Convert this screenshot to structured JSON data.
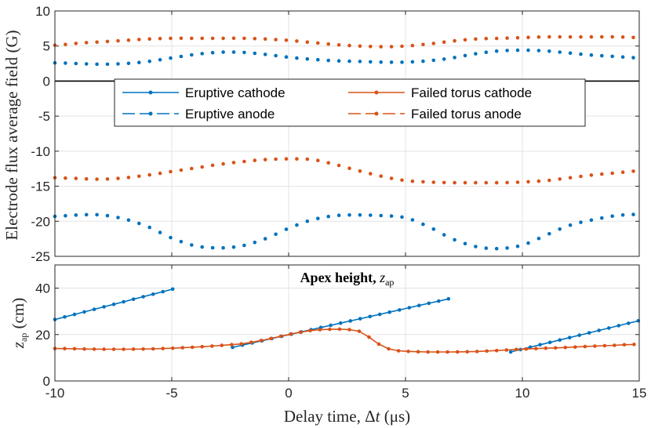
{
  "chart_data": [
    {
      "type": "line",
      "name": "flux",
      "ylabel": "Electrode flux average field (G)",
      "xlim": [
        -10,
        15
      ],
      "ylim": [
        -25,
        10
      ],
      "xticks": [
        -10,
        -5,
        0,
        5,
        10,
        15
      ],
      "yticks": [
        -25,
        -20,
        -15,
        -10,
        -5,
        0,
        5,
        10
      ],
      "x_tick_labels": [
        "-10",
        "-5",
        "0",
        "5",
        "10",
        "15"
      ],
      "y_tick_labels": [
        "-25",
        "-20",
        "-15",
        "-10",
        "-5",
        "0",
        "5",
        "10"
      ],
      "grid": true,
      "zero_line": true,
      "legend": {
        "placement": "upper-middle",
        "entries": [
          {
            "label": "Eruptive cathode",
            "color": "#0072BD",
            "style": "solid"
          },
          {
            "label": "Failed torus cathode",
            "color": "#D95319",
            "style": "solid"
          },
          {
            "label": "Eruptive anode",
            "color": "#0072BD",
            "style": "dashed"
          },
          {
            "label": "Failed torus anode",
            "color": "#D95319",
            "style": "dashed"
          }
        ]
      },
      "series": [
        {
          "name": "Eruptive cathode",
          "color": "#0072BD",
          "x": [
            -10,
            -9,
            -8,
            -7,
            -6,
            -5,
            -4,
            -3,
            -2,
            -1,
            0,
            1,
            2,
            3,
            4,
            5,
            6,
            7,
            8,
            9,
            10,
            11,
            12,
            13,
            14,
            15
          ],
          "y": [
            2.6,
            2.5,
            2.4,
            2.5,
            2.8,
            3.3,
            3.8,
            4.1,
            4.1,
            3.8,
            3.4,
            3.1,
            2.9,
            2.8,
            2.7,
            2.7,
            2.9,
            3.3,
            3.9,
            4.3,
            4.4,
            4.3,
            4.0,
            3.7,
            3.5,
            3.3
          ]
        },
        {
          "name": "Failed torus cathode",
          "color": "#D95319",
          "x": [
            -10,
            -9,
            -8,
            -7,
            -6,
            -5,
            -4,
            -3,
            -2,
            -1,
            0,
            1,
            2,
            3,
            4,
            5,
            6,
            7,
            8,
            9,
            10,
            11,
            12,
            13,
            14,
            15
          ],
          "y": [
            5.1,
            5.4,
            5.6,
            5.8,
            6.0,
            6.1,
            6.1,
            6.1,
            6.1,
            6.0,
            5.8,
            5.5,
            5.2,
            5.0,
            4.9,
            5.0,
            5.3,
            5.7,
            6.0,
            6.1,
            6.2,
            6.3,
            6.3,
            6.3,
            6.3,
            6.2
          ]
        },
        {
          "name": "Eruptive anode",
          "color": "#0072BD",
          "x": [
            -10,
            -9,
            -8,
            -7,
            -6,
            -5,
            -4,
            -3,
            -2,
            -1,
            0,
            1,
            2,
            3,
            4,
            5,
            6,
            7,
            8,
            9,
            10,
            11,
            12,
            13,
            14,
            15
          ],
          "y": [
            -19.3,
            -19.1,
            -19.1,
            -19.7,
            -20.8,
            -22.4,
            -23.5,
            -23.8,
            -23.5,
            -22.5,
            -21.0,
            -19.8,
            -19.2,
            -19.1,
            -19.2,
            -19.5,
            -20.8,
            -22.5,
            -23.6,
            -23.9,
            -23.4,
            -22.0,
            -20.6,
            -19.8,
            -19.2,
            -19.0
          ]
        },
        {
          "name": "Failed torus anode",
          "color": "#D95319",
          "x": [
            -10,
            -9,
            -8,
            -7,
            -6,
            -5,
            -4,
            -3,
            -2,
            -1,
            0,
            1,
            2,
            3,
            4,
            5,
            6,
            7,
            8,
            9,
            10,
            11,
            12,
            13,
            14,
            15
          ],
          "y": [
            -13.8,
            -13.9,
            -14.0,
            -13.8,
            -13.4,
            -12.9,
            -12.4,
            -11.9,
            -11.5,
            -11.2,
            -11.1,
            -11.2,
            -11.9,
            -12.8,
            -13.6,
            -14.2,
            -14.4,
            -14.5,
            -14.5,
            -14.5,
            -14.4,
            -14.2,
            -13.8,
            -13.4,
            -13.1,
            -12.8
          ]
        }
      ]
    },
    {
      "type": "line",
      "name": "apex",
      "title_bold": "Apex height, ",
      "title_var": "z",
      "title_sub": "ap",
      "xlabel_prefix": "Delay time, Δ",
      "xlabel_var": "t",
      "xlabel_units": " (μs)",
      "ylabel_var": "z",
      "ylabel_sub": "ap",
      "ylabel_units": " (cm)",
      "xlim": [
        -10,
        15
      ],
      "ylim": [
        0,
        50
      ],
      "xticks": [
        -10,
        -5,
        0,
        5,
        10,
        15
      ],
      "yticks": [
        0,
        20,
        40
      ],
      "x_tick_labels": [
        "-10",
        "-5",
        "0",
        "5",
        "10",
        "15"
      ],
      "y_tick_labels": [
        "0",
        "20",
        "40"
      ],
      "grid": true,
      "series": [
        {
          "name": "Eruptive segment 1",
          "color": "#0072BD",
          "x": [
            -10,
            -4.8
          ],
          "y": [
            26.5,
            40.0
          ]
        },
        {
          "name": "Eruptive segment 2",
          "color": "#0072BD",
          "x": [
            -2.4,
            6.9
          ],
          "y": [
            14.5,
            35.5
          ]
        },
        {
          "name": "Eruptive segment 3",
          "color": "#0072BD",
          "x": [
            9.5,
            15
          ],
          "y": [
            12.5,
            26.0
          ]
        },
        {
          "name": "Failed torus",
          "color": "#D95319",
          "x": [
            -10,
            -8,
            -6,
            -4,
            -2,
            -1,
            0,
            1,
            2,
            2.5,
            3,
            3.5,
            4,
            4.5,
            5,
            6,
            8,
            10,
            12,
            14,
            15
          ],
          "y": [
            14.0,
            13.7,
            13.8,
            14.6,
            16.0,
            17.8,
            20.0,
            21.8,
            22.3,
            22.2,
            21.5,
            18.5,
            15.0,
            13.3,
            12.8,
            12.5,
            12.7,
            13.7,
            14.5,
            15.4,
            15.8
          ]
        }
      ]
    }
  ]
}
